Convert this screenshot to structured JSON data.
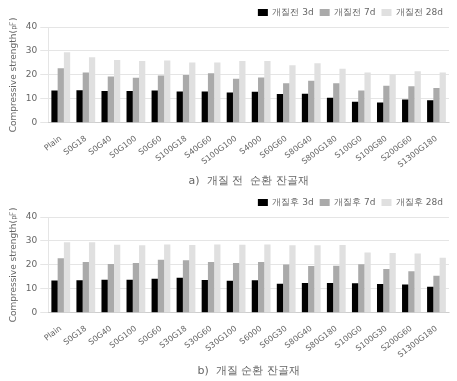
{
  "chart_data": [
    {
      "type": "bar",
      "title": "a)  개질 전  순환 잔골재",
      "y_label": "Compressive strength(㎊)",
      "categories": [
        "Plain",
        "S0G18",
        "S0G40",
        "S0G100",
        "S0G60",
        "S100G18",
        "S40G60",
        "S100G100",
        "S4000",
        "S60G60",
        "S80G40",
        "S800G180",
        "S100G0",
        "S100G80",
        "S200G60",
        "S1300G180"
      ],
      "series": [
        {
          "name": "개질전 3d",
          "color": "#000000",
          "values": [
            13.5,
            13.6,
            13.3,
            13.3,
            13.5,
            13.1,
            13.1,
            12.7,
            13.0,
            12.0,
            12.1,
            10.5,
            8.8,
            8.5,
            9.7,
            9.4
          ]
        },
        {
          "name": "개질전 7d",
          "color": "#aaaaaa",
          "values": [
            22.8,
            21.0,
            19.3,
            18.8,
            19.8,
            20.0,
            20.7,
            18.4,
            18.9,
            16.5,
            17.6,
            16.5,
            13.5,
            15.5,
            15.3,
            14.5
          ]
        },
        {
          "name": "개질전 28d",
          "color": "#e0e0e0",
          "values": [
            29.5,
            27.4,
            26.2,
            25.8,
            26.0,
            25.2,
            25.2,
            25.8,
            25.8,
            24.0,
            24.9,
            22.6,
            21.0,
            20.3,
            21.5,
            21.0
          ]
        }
      ],
      "ylim": [
        0,
        40
      ],
      "yticks": [
        0,
        10,
        20,
        30,
        40
      ],
      "grid": true,
      "legend": "upper right"
    },
    {
      "type": "bar",
      "title": "b)  개질 순환 잔골재",
      "y_label": "Compressive strength(㎊)",
      "categories": [
        "Plain",
        "S0G18",
        "S0G40",
        "S0G100",
        "S0G60",
        "S30G18",
        "S30G60",
        "S30G100",
        "S6000",
        "S60G30",
        "S80G40",
        "S80G180",
        "S100G0",
        "S100G30",
        "S200G60",
        "S1300G180"
      ],
      "series": [
        {
          "name": "개질후 3d",
          "color": "#000000",
          "values": [
            13.5,
            13.6,
            13.8,
            13.8,
            14.2,
            14.6,
            13.7,
            13.4,
            13.6,
            12.1,
            12.5,
            12.5,
            12.4,
            12.0,
            11.8,
            10.9
          ]
        },
        {
          "name": "개질후 7d",
          "color": "#aaaaaa",
          "values": [
            22.8,
            21.2,
            20.4,
            20.8,
            22.2,
            21.9,
            21.2,
            20.8,
            21.2,
            20.2,
            19.5,
            19.7,
            20.3,
            18.3,
            17.4,
            15.5
          ]
        },
        {
          "name": "개질후 28d",
          "color": "#e0e0e0",
          "values": [
            29.5,
            29.5,
            28.4,
            28.2,
            28.5,
            28.3,
            28.5,
            28.4,
            28.5,
            28.2,
            28.2,
            28.3,
            25.2,
            25.0,
            24.8,
            23.0
          ]
        }
      ],
      "ylim": [
        0,
        40
      ],
      "yticks": [
        0,
        10,
        20,
        30,
        40
      ],
      "grid": true,
      "legend": "upper right"
    }
  ]
}
